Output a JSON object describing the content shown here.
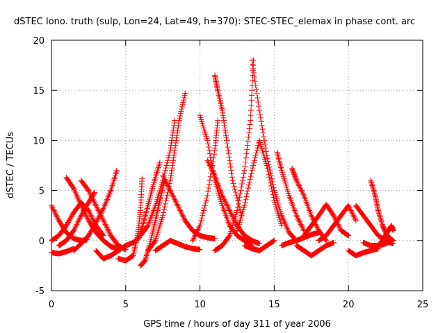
{
  "chart_data": {
    "type": "scatter",
    "title": "dSTEC Iono. truth (sulp, Lon=24, Lat=49, h=370): STEC-STEC_elemax in phase cont. arc",
    "xlabel": "GPS time / hours of day 311 of year 2006",
    "ylabel": "dSTEC  / TECUs",
    "xlim": [
      0,
      25
    ],
    "ylim": [
      -5,
      20
    ],
    "xticks": [
      0,
      5,
      10,
      15,
      20,
      25
    ],
    "yticks": [
      -5,
      0,
      5,
      10,
      15,
      20
    ],
    "grid": true,
    "marker": "plus",
    "color": "#ff0000",
    "series": [
      {
        "x": [
          0.0,
          0.5,
          1.0,
          1.5,
          2.0,
          2.4
        ],
        "y": [
          3.5,
          2.0,
          0.8,
          0.2,
          0.0,
          0.1
        ]
      },
      {
        "x": [
          0.0,
          0.5,
          1.0,
          1.5
        ],
        "y": [
          -1.2,
          -1.3,
          -1.1,
          -0.8
        ]
      },
      {
        "x": [
          1.0,
          1.5,
          2.0,
          2.5,
          3.0,
          3.5,
          4.0,
          4.5
        ],
        "y": [
          6.3,
          5.2,
          3.5,
          2.0,
          0.8,
          0.0,
          -0.6,
          -0.8
        ]
      },
      {
        "x": [
          2.0,
          2.5,
          3.0,
          3.5,
          4.0,
          4.5,
          5.0
        ],
        "y": [
          6.0,
          5.0,
          3.5,
          2.0,
          0.5,
          -0.5,
          -0.9
        ]
      },
      {
        "x": [
          0.5,
          1.0,
          1.5,
          2.0,
          2.5,
          2.9
        ],
        "y": [
          -0.5,
          0.0,
          1.0,
          2.5,
          3.8,
          4.8
        ]
      },
      {
        "x": [
          0.0,
          0.5,
          1.0,
          1.5,
          2.0,
          2.5,
          3.0,
          3.5
        ],
        "y": [
          0.0,
          0.5,
          1.5,
          2.8,
          3.8,
          3.0,
          1.5,
          0.5
        ]
      },
      {
        "x": [
          1.5,
          2.0,
          2.5,
          3.0,
          3.5,
          4.0,
          4.4
        ],
        "y": [
          -1.0,
          -0.3,
          0.5,
          1.8,
          3.2,
          5.0,
          7.0
        ]
      },
      {
        "x": [
          3.0,
          3.5,
          4.0,
          4.5,
          5.0
        ],
        "y": [
          -1.0,
          -1.8,
          -1.5,
          -1.0,
          -0.5
        ]
      },
      {
        "x": [
          4.5,
          5.0,
          5.5,
          5.8,
          6.0,
          6.1
        ],
        "y": [
          -1.8,
          -2.0,
          -1.5,
          0.5,
          3.0,
          6.2
        ]
      },
      {
        "x": [
          5.0,
          5.5,
          5.9,
          6.2,
          6.5,
          6.9,
          7.3
        ],
        "y": [
          -0.5,
          -0.2,
          0.3,
          1.8,
          3.5,
          5.8,
          7.8
        ]
      },
      {
        "x": [
          6.0,
          6.3,
          6.6,
          7.0,
          7.3,
          7.6
        ],
        "y": [
          -2.5,
          -2.0,
          -0.5,
          2.0,
          4.0,
          6.0
        ]
      },
      {
        "x": [
          6.5,
          7.0,
          7.5,
          8.0,
          8.3,
          8.6,
          9.0
        ],
        "y": [
          -1.0,
          0.0,
          2.5,
          6.0,
          9.0,
          12.0,
          14.7
        ]
      },
      {
        "x": [
          6.0,
          6.5,
          7.0,
          7.5,
          8.0,
          8.3
        ],
        "y": [
          0.5,
          1.5,
          3.5,
          6.0,
          9.0,
          12.0
        ]
      },
      {
        "x": [
          7.5,
          8.0,
          8.5,
          9.0,
          9.5,
          10.0,
          10.5,
          11.0
        ],
        "y": [
          6.5,
          5.0,
          3.5,
          2.0,
          1.0,
          0.5,
          0.3,
          0.2
        ]
      },
      {
        "x": [
          7.0,
          7.5,
          8.0,
          8.5,
          9.0,
          9.5,
          10.0
        ],
        "y": [
          -1.0,
          -0.5,
          0.0,
          -0.3,
          -0.6,
          -0.8,
          -0.9
        ]
      },
      {
        "x": [
          9.5,
          10.0,
          10.5,
          11.0,
          11.2
        ],
        "y": [
          0.0,
          1.5,
          4.5,
          9.0,
          12.0
        ]
      },
      {
        "x": [
          10.0,
          10.5,
          11.0,
          11.5,
          12.0,
          12.5,
          13.0,
          13.5
        ],
        "y": [
          12.5,
          10.0,
          6.0,
          3.5,
          1.5,
          0.5,
          0.0,
          -0.5
        ]
      },
      {
        "x": [
          10.5,
          11.0,
          11.5,
          12.0,
          12.5,
          13.0,
          13.5,
          14.0
        ],
        "y": [
          8.0,
          6.5,
          4.5,
          3.0,
          1.5,
          0.5,
          0.0,
          -0.3
        ]
      },
      {
        "x": [
          11.0,
          11.2,
          11.5,
          11.8,
          12.2,
          12.8
        ],
        "y": [
          16.5,
          15.0,
          13.0,
          10.0,
          6.0,
          2.5
        ]
      },
      {
        "x": [
          11.0,
          11.5,
          12.0,
          12.5,
          13.0,
          13.4,
          13.6
        ],
        "y": [
          -1.0,
          -0.5,
          0.5,
          3.0,
          7.0,
          12.0,
          18.0
        ]
      },
      {
        "x": [
          13.5,
          14.0,
          14.5,
          15.0,
          15.5,
          16.0,
          16.5
        ],
        "y": [
          18.0,
          13.0,
          8.5,
          5.0,
          2.5,
          0.8,
          0.0
        ]
      },
      {
        "x": [
          12.5,
          13.0,
          13.5,
          14.0,
          14.5,
          15.0,
          15.5
        ],
        "y": [
          1.0,
          3.5,
          7.0,
          10.0,
          7.5,
          4.0,
          1.5
        ]
      },
      {
        "x": [
          13.0,
          13.5,
          14.0,
          14.5,
          15.0
        ],
        "y": [
          -0.5,
          -0.8,
          -1.0,
          -0.5,
          0.0
        ]
      },
      {
        "x": [
          15.2,
          15.5,
          16.0,
          16.5,
          17.0
        ],
        "y": [
          8.8,
          7.0,
          4.5,
          2.5,
          1.0
        ]
      },
      {
        "x": [
          16.2,
          16.5,
          17.0,
          17.5,
          18.0,
          18.5
        ],
        "y": [
          7.2,
          6.0,
          4.5,
          2.5,
          1.0,
          0.0
        ]
      },
      {
        "x": [
          15.5,
          16.0,
          16.5,
          17.0,
          17.5,
          18.0
        ],
        "y": [
          -0.5,
          -0.2,
          0.0,
          0.3,
          0.6,
          0.8
        ]
      },
      {
        "x": [
          16.5,
          17.0,
          17.5,
          18.0,
          18.5,
          19.0
        ],
        "y": [
          -0.5,
          -1.0,
          -1.5,
          -1.0,
          -0.5,
          -0.2
        ]
      },
      {
        "x": [
          17.0,
          17.5,
          18.0,
          18.5,
          19.0,
          19.5,
          20.0
        ],
        "y": [
          0.5,
          1.5,
          2.5,
          3.6,
          2.5,
          1.0,
          0.5
        ]
      },
      {
        "x": [
          18.0,
          18.5,
          19.0,
          19.5,
          20.0,
          20.5
        ],
        "y": [
          0.0,
          0.5,
          1.5,
          2.5,
          3.5,
          2.0
        ]
      },
      {
        "x": [
          20.0,
          20.5,
          21.0,
          21.5,
          22.0
        ],
        "y": [
          -1.0,
          -1.5,
          -1.2,
          -1.0,
          -0.8
        ]
      },
      {
        "x": [
          20.5,
          21.0,
          21.5,
          22.0,
          22.5,
          23.0
        ],
        "y": [
          3.5,
          2.5,
          1.5,
          0.5,
          0.0,
          -0.3
        ]
      },
      {
        "x": [
          21.5,
          21.8,
          22.0,
          22.3,
          22.6,
          23.0
        ],
        "y": [
          6.0,
          4.5,
          3.0,
          1.5,
          0.5,
          0.0
        ]
      },
      {
        "x": [
          21.0,
          21.5,
          22.0,
          22.5,
          23.0
        ],
        "y": [
          -0.2,
          -0.5,
          -0.5,
          -0.3,
          0.0
        ]
      },
      {
        "x": [
          22.0,
          22.3,
          22.6,
          22.9,
          23.0
        ],
        "y": [
          -0.5,
          0.0,
          0.8,
          1.5,
          1.0
        ]
      }
    ]
  }
}
